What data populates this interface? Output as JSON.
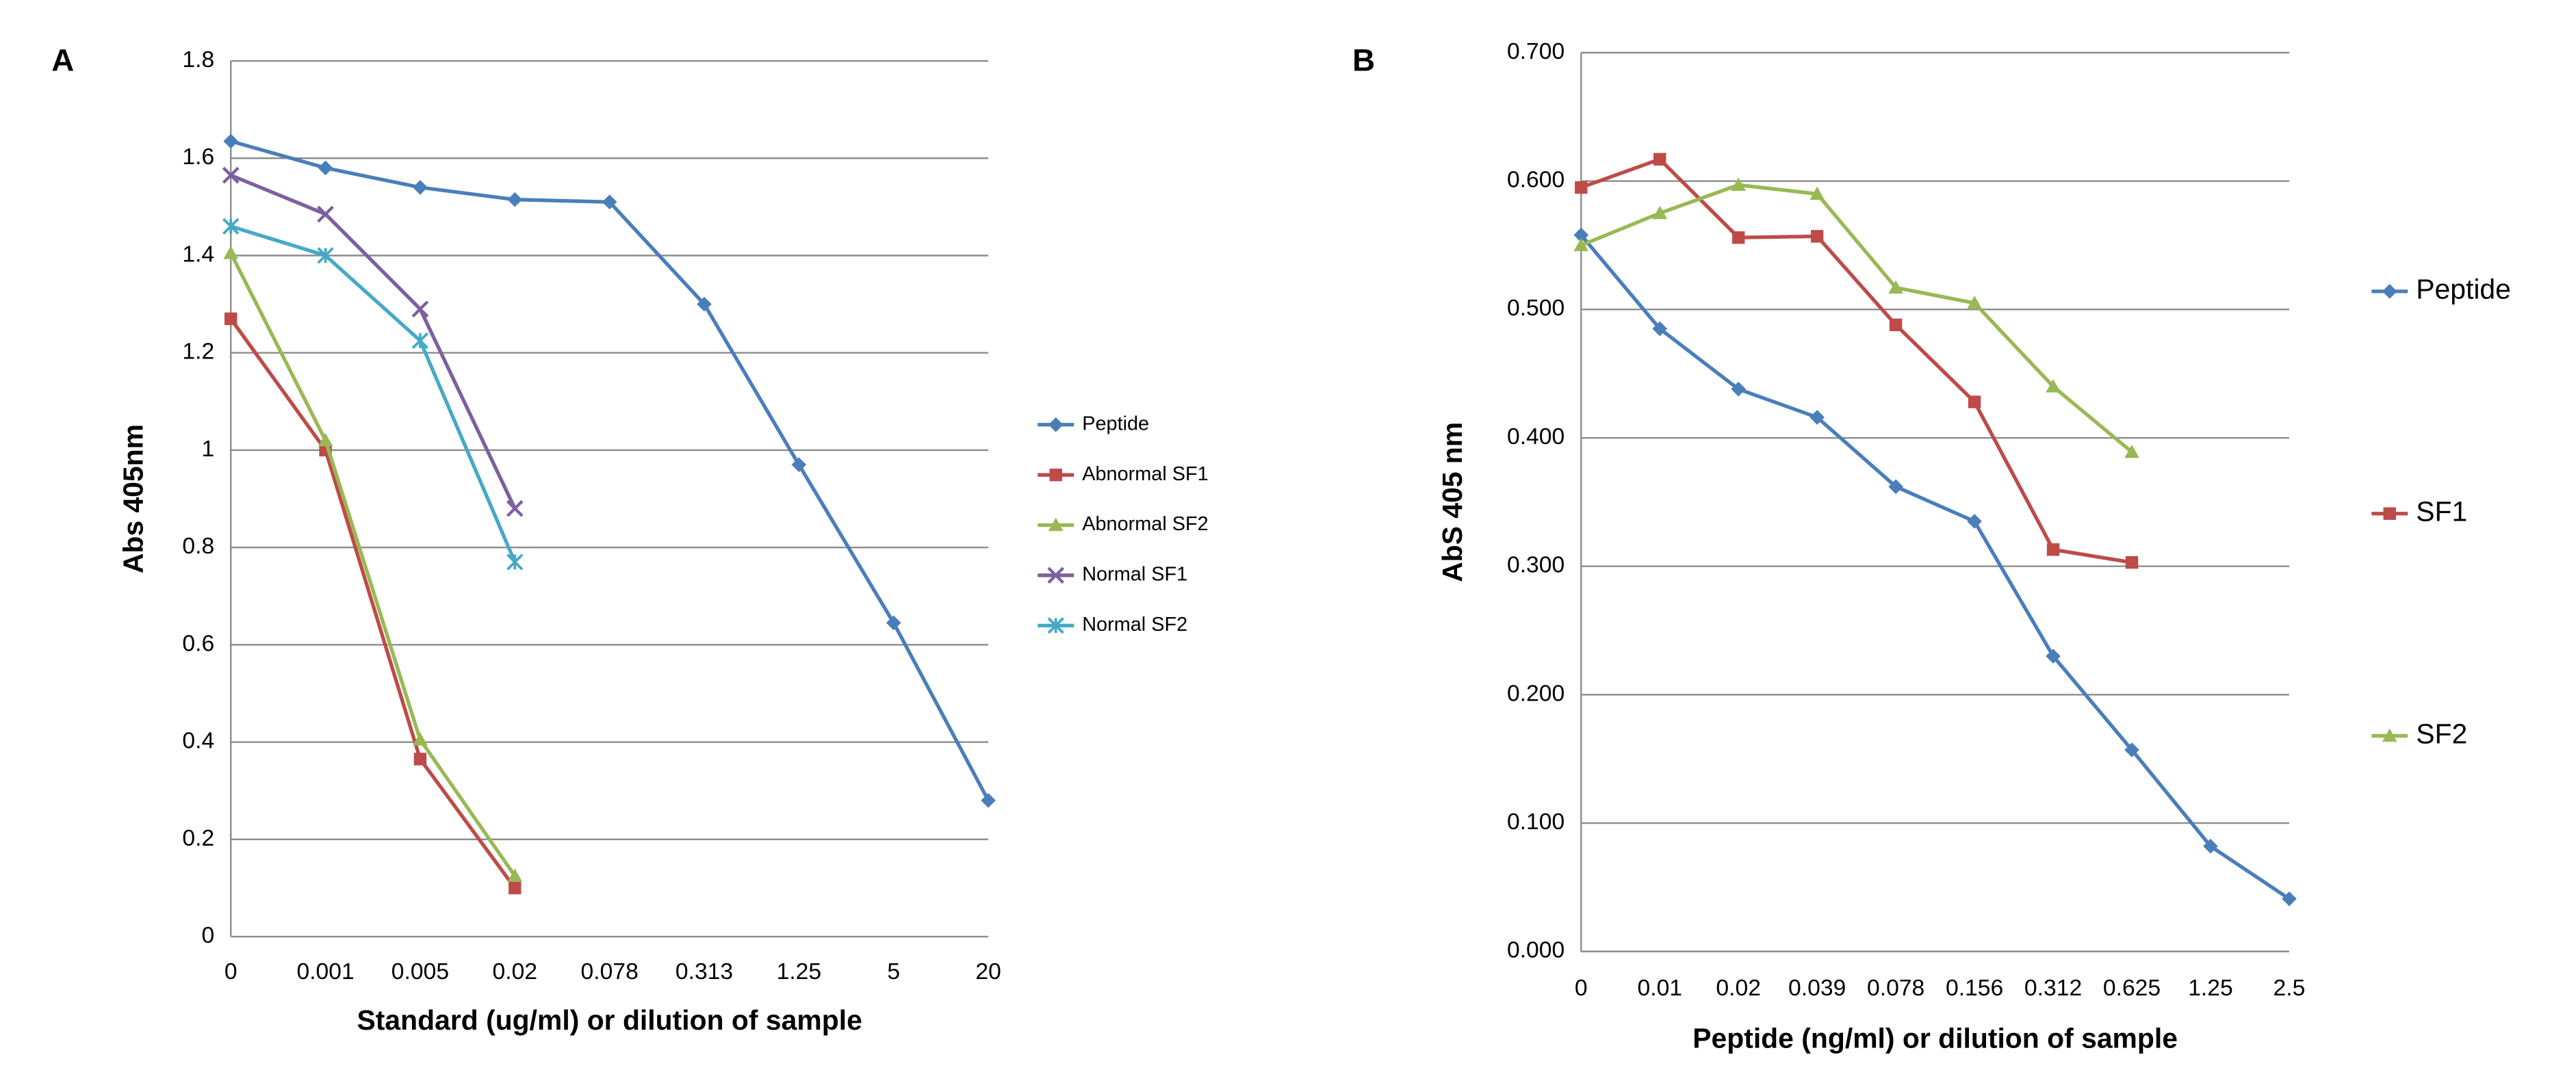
{
  "chart_data": [
    {
      "type": "line",
      "label": "A",
      "x_label": "Standard (ug/ml) or dilution of sample",
      "y_label": "Abs 405nm",
      "categories": [
        "0",
        "0.001",
        "0.005",
        "0.02",
        "0.078",
        "0.313",
        "1.25",
        "5",
        "20"
      ],
      "ylim": [
        0,
        1.8
      ],
      "yticks": [
        0,
        0.2,
        0.4,
        0.6,
        0.8,
        1,
        1.2,
        1.4,
        1.6,
        1.8
      ],
      "grid": true,
      "series": [
        {
          "name": "Peptide",
          "color": "#4a7ebb",
          "marker": "diamond",
          "values": [
            1.635,
            1.58,
            1.54,
            1.515,
            1.51,
            1.3,
            0.97,
            0.645,
            0.28
          ]
        },
        {
          "name": "Abnormal SF1",
          "color": "#be4b48",
          "marker": "square",
          "values": [
            1.27,
            1.0,
            0.365,
            0.1,
            null,
            null,
            null,
            null,
            null
          ]
        },
        {
          "name": "Abnormal SF2",
          "color": "#98b954",
          "marker": "triangle",
          "values": [
            1.405,
            1.02,
            0.405,
            0.125,
            null,
            null,
            null,
            null,
            null
          ]
        },
        {
          "name": "Normal SF1",
          "color": "#7d60a0",
          "marker": "x",
          "values": [
            1.565,
            1.485,
            1.29,
            0.88,
            null,
            null,
            null,
            null,
            null
          ]
        },
        {
          "name": "Normal SF2",
          "color": "#46aac5",
          "marker": "star",
          "values": [
            1.46,
            1.4,
            1.225,
            0.77,
            null,
            null,
            null,
            null,
            null
          ]
        }
      ]
    },
    {
      "type": "line",
      "label": "B",
      "x_label": "Peptide (ng/ml) or dilution of sample",
      "y_label": "AbS 405 nm",
      "categories": [
        "0",
        "0.01",
        "0.02",
        "0.039",
        "0.078",
        "0.156",
        "0.312",
        "0.625",
        "1.25",
        "2.5"
      ],
      "ylim": [
        0,
        0.7
      ],
      "yticks": [
        {
          "value": 0,
          "label": "0.000"
        },
        {
          "value": 0.1,
          "label": "0.100"
        },
        {
          "value": 0.2,
          "label": "0.200"
        },
        {
          "value": 0.3,
          "label": "0.300"
        },
        {
          "value": 0.4,
          "label": "0.400"
        },
        {
          "value": 0.5,
          "label": "0.500"
        },
        {
          "value": 0.6,
          "label": "0.600"
        },
        {
          "value": 0.7,
          "label": "0.700"
        }
      ],
      "grid": true,
      "series": [
        {
          "name": "Peptide",
          "color": "#4a7ebb",
          "marker": "diamond",
          "values": [
            0.558,
            0.485,
            0.438,
            0.416,
            0.362,
            0.335,
            0.23,
            0.157,
            0.082,
            0.041
          ]
        },
        {
          "name": "SF1",
          "color": "#be4b48",
          "marker": "square",
          "values": [
            0.595,
            0.617,
            0.556,
            0.557,
            0.488,
            0.428,
            0.313,
            0.303,
            null,
            null
          ]
        },
        {
          "name": "SF2",
          "color": "#98b954",
          "marker": "triangle",
          "values": [
            0.55,
            0.575,
            0.597,
            0.59,
            0.517,
            0.505,
            0.44,
            0.389,
            null,
            null
          ]
        }
      ]
    }
  ]
}
